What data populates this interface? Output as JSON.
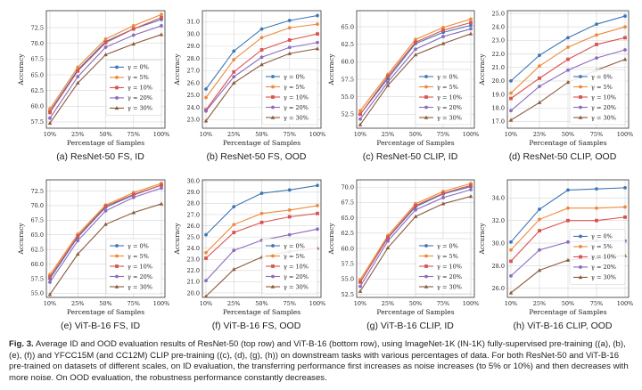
{
  "colors": {
    "series": [
      "#3f77b6",
      "#ee8a3c",
      "#d9534f",
      "#8c6bbf",
      "#8b5a3c"
    ],
    "grid": "#d6d6d6",
    "spine": "#333333"
  },
  "figure_caption": {
    "prefix": "Fig. 3.",
    "text": "Average ID and OOD evaluation results of ResNet-50 (top row) and ViT-B-16 (bottom row), using ImageNet-1K (IN-1K) fully-supervised pre-training ((a), (b), (e), (f)) and YFCC15M (and CC12M) CLIP pre-training ((c), (d), (g), (h)) on downstream tasks with various percentages of data. For both ResNet-50 and ViT-B-16 pre-trained on datasets of different scales, on ID evaluation, the transferring performance first increases as noise increases (to 5% or 10%) and then decreases with more noise. On OOD evaluation, the robustness performance constantly decreases."
  },
  "chart_data": [
    {
      "id": "a",
      "type": "line",
      "caption": "(a) ResNet-50 FS, ID",
      "xlabel": "Percentage of Samples",
      "ylabel": "Accuracy",
      "categories": [
        "10%",
        "25%",
        "50%",
        "75%",
        "100%"
      ],
      "ylim": [
        56.5,
        75.2
      ],
      "yticks": [
        57.5,
        60.0,
        62.5,
        65.0,
        67.5,
        70.0,
        72.5
      ],
      "yticklabels": [
        "57.5",
        "60.0",
        "62.5",
        "65.0",
        "67.5",
        "70.0",
        "72.5"
      ],
      "legend_position": "center-right",
      "series": [
        {
          "name": "γ = 0%",
          "values": [
            59.2,
            65.8,
            70.3,
            72.3,
            73.8
          ]
        },
        {
          "name": "γ = 5%",
          "values": [
            59.6,
            66.2,
            70.7,
            72.8,
            74.6
          ]
        },
        {
          "name": "γ = 10%",
          "values": [
            59.0,
            65.6,
            70.1,
            72.3,
            74.1
          ]
        },
        {
          "name": "γ = 20%",
          "values": [
            58.1,
            64.7,
            69.4,
            71.3,
            72.8
          ]
        },
        {
          "name": "γ = 30%",
          "values": [
            57.3,
            63.7,
            68.2,
            69.9,
            71.4
          ]
        }
      ]
    },
    {
      "id": "b",
      "type": "line",
      "caption": "(b) ResNet-50 FS, OOD",
      "xlabel": "Percentage of Samples",
      "ylabel": "Accuracy",
      "categories": [
        "10%",
        "25%",
        "50%",
        "75%",
        "100%"
      ],
      "ylim": [
        22.3,
        31.9
      ],
      "yticks": [
        23.0,
        24.0,
        25.0,
        26.0,
        27.0,
        28.0,
        29.0,
        30.0,
        31.0
      ],
      "yticklabels": [
        "23.0",
        "24.0",
        "25.0",
        "26.0",
        "27.0",
        "28.0",
        "29.0",
        "30.0",
        "31.0"
      ],
      "legend_position": "bottom-right",
      "series": [
        {
          "name": "γ = 0%",
          "values": [
            25.5,
            28.6,
            30.4,
            31.1,
            31.5
          ]
        },
        {
          "name": "γ = 5%",
          "values": [
            24.8,
            27.9,
            29.7,
            30.5,
            30.8
          ]
        },
        {
          "name": "γ = 10%",
          "values": [
            23.8,
            26.9,
            28.7,
            29.5,
            30.0
          ]
        },
        {
          "name": "γ = 20%",
          "values": [
            23.7,
            26.5,
            28.1,
            28.9,
            29.3
          ]
        },
        {
          "name": "γ = 30%",
          "values": [
            22.9,
            26.0,
            27.5,
            28.4,
            28.8
          ]
        }
      ]
    },
    {
      "id": "c",
      "type": "line",
      "caption": "(c) ResNet-50 CLIP, ID",
      "xlabel": "Percentage of Samples",
      "ylabel": "Accuracy",
      "categories": [
        "10%",
        "25%",
        "50%",
        "75%",
        "100%"
      ],
      "ylim": [
        50.5,
        67.3
      ],
      "yticks": [
        52.5,
        55.0,
        57.5,
        60.0,
        62.5,
        65.0
      ],
      "yticklabels": [
        "52.5",
        "55.0",
        "57.5",
        "60.0",
        "62.5",
        "65.0"
      ],
      "legend_position": "bottom-right",
      "series": [
        {
          "name": "γ = 0%",
          "values": [
            52.5,
            57.6,
            62.6,
            64.2,
            65.2
          ]
        },
        {
          "name": "γ = 5%",
          "values": [
            53.0,
            58.2,
            63.2,
            64.9,
            66.1
          ]
        },
        {
          "name": "γ = 10%",
          "values": [
            52.5,
            57.9,
            62.8,
            64.5,
            65.6
          ]
        },
        {
          "name": "γ = 20%",
          "values": [
            51.8,
            57.1,
            61.8,
            63.6,
            64.7
          ]
        },
        {
          "name": "γ = 30%",
          "values": [
            51.0,
            56.6,
            61.0,
            62.6,
            64.0
          ]
        }
      ]
    },
    {
      "id": "d",
      "type": "line",
      "caption": "(d) ResNet-50 CLIP, OOD",
      "xlabel": "Percentage of Samples",
      "ylabel": "Accuracy",
      "categories": [
        "10%",
        "25%",
        "50%",
        "75%",
        "100%"
      ],
      "ylim": [
        16.5,
        25.2
      ],
      "yticks": [
        17.0,
        18.0,
        19.0,
        20.0,
        21.0,
        22.0,
        23.0,
        24.0,
        25.0
      ],
      "yticklabels": [
        "17.0",
        "18.0",
        "19.0",
        "20.0",
        "21.0",
        "22.0",
        "23.0",
        "24.0",
        "25.0"
      ],
      "legend_position": "bottom-right",
      "series": [
        {
          "name": "γ = 0%",
          "values": [
            20.0,
            21.9,
            23.2,
            24.2,
            24.8
          ]
        },
        {
          "name": "γ = 5%",
          "values": [
            19.1,
            21.1,
            22.5,
            23.4,
            24.0
          ]
        },
        {
          "name": "γ = 10%",
          "values": [
            18.7,
            20.2,
            21.6,
            22.7,
            23.2
          ]
        },
        {
          "name": "γ = 20%",
          "values": [
            17.8,
            19.6,
            20.8,
            21.7,
            22.3
          ]
        },
        {
          "name": "γ = 30%",
          "values": [
            17.1,
            18.4,
            19.9,
            20.8,
            21.6
          ]
        }
      ]
    },
    {
      "id": "e",
      "type": "line",
      "caption": "(e) ViT-B-16 FS, ID",
      "xlabel": "Percentage of Samples",
      "ylabel": "Accuracy",
      "categories": [
        "10%",
        "25%",
        "50%",
        "75%",
        "100%"
      ],
      "ylim": [
        54.3,
        74.4
      ],
      "yticks": [
        55.0,
        57.5,
        60.0,
        62.5,
        65.0,
        67.5,
        70.0,
        72.5
      ],
      "yticklabels": [
        "55.0",
        "57.5",
        "60.0",
        "62.5",
        "65.0",
        "67.5",
        "70.0",
        "72.5"
      ],
      "legend_position": "bottom-right",
      "series": [
        {
          "name": "γ = 0%",
          "values": [
            57.5,
            64.6,
            69.7,
            71.8,
            73.5
          ]
        },
        {
          "name": "γ = 5%",
          "values": [
            58.2,
            65.1,
            70.1,
            72.2,
            73.8
          ]
        },
        {
          "name": "γ = 10%",
          "values": [
            57.8,
            64.8,
            69.9,
            71.9,
            73.5
          ]
        },
        {
          "name": "γ = 20%",
          "values": [
            56.9,
            64.0,
            69.1,
            71.4,
            73.0
          ]
        },
        {
          "name": "γ = 30%",
          "values": [
            54.8,
            61.7,
            66.8,
            68.8,
            70.3
          ]
        }
      ]
    },
    {
      "id": "f",
      "type": "line",
      "caption": "(f) ViT-B-16 FS, OOD",
      "xlabel": "Percentage of Samples",
      "ylabel": "Accuracy",
      "categories": [
        "10%",
        "25%",
        "50%",
        "75%",
        "100%"
      ],
      "ylim": [
        19.6,
        30.1
      ],
      "yticks": [
        20.0,
        21.0,
        22.0,
        23.0,
        24.0,
        25.0,
        26.0,
        27.0,
        28.0,
        29.0,
        30.0
      ],
      "yticklabels": [
        "20.0",
        "21.0",
        "22.0",
        "23.0",
        "24.0",
        "25.0",
        "26.0",
        "27.0",
        "28.0",
        "29.0",
        "30.0"
      ],
      "legend_position": "bottom-right",
      "series": [
        {
          "name": "γ = 0%",
          "values": [
            25.2,
            27.7,
            28.9,
            29.2,
            29.6
          ]
        },
        {
          "name": "γ = 5%",
          "values": [
            23.6,
            26.1,
            27.1,
            27.4,
            27.8
          ]
        },
        {
          "name": "γ = 10%",
          "values": [
            23.1,
            25.4,
            26.3,
            26.8,
            27.1
          ]
        },
        {
          "name": "γ = 20%",
          "values": [
            21.1,
            23.8,
            24.7,
            25.2,
            25.7
          ]
        },
        {
          "name": "γ = 30%",
          "values": [
            19.7,
            22.1,
            23.2,
            23.7,
            24.0
          ]
        }
      ]
    },
    {
      "id": "g",
      "type": "line",
      "caption": "(g) ViT-B-16 CLIP, ID",
      "xlabel": "Percentage of Samples",
      "ylabel": "Accuracy",
      "categories": [
        "10%",
        "25%",
        "50%",
        "75%",
        "100%"
      ],
      "ylim": [
        52.0,
        71.2
      ],
      "yticks": [
        52.5,
        55.0,
        57.5,
        60.0,
        62.5,
        65.0,
        67.5,
        70.0
      ],
      "yticklabels": [
        "52.5",
        "55.0",
        "57.5",
        "60.0",
        "62.5",
        "65.0",
        "67.5",
        "70.0"
      ],
      "legend_position": "bottom-right",
      "series": [
        {
          "name": "γ = 0%",
          "values": [
            54.5,
            61.7,
            66.8,
            68.9,
            70.1
          ]
        },
        {
          "name": "γ = 5%",
          "values": [
            54.9,
            62.1,
            67.3,
            69.3,
            70.6
          ]
        },
        {
          "name": "γ = 10%",
          "values": [
            54.5,
            61.8,
            67.0,
            69.0,
            70.3
          ]
        },
        {
          "name": "γ = 20%",
          "values": [
            53.8,
            61.2,
            66.3,
            68.3,
            69.6
          ]
        },
        {
          "name": "γ = 30%",
          "values": [
            53.0,
            60.1,
            65.2,
            67.3,
            68.5
          ]
        }
      ]
    },
    {
      "id": "h",
      "type": "line",
      "caption": "(h) ViT-B-16 CLIP, OOD",
      "xlabel": "Percentage of Samples",
      "ylabel": "Accuracy",
      "categories": [
        "10%",
        "25%",
        "50%",
        "75%",
        "100%"
      ],
      "ylim": [
        25.2,
        35.6
      ],
      "yticks": [
        26.0,
        28.0,
        30.0,
        32.0,
        34.0
      ],
      "yticklabels": [
        "26.0",
        "28.0",
        "30.0",
        "32.0",
        "34.0"
      ],
      "legend_position": "center-right",
      "series": [
        {
          "name": "γ = 0%",
          "values": [
            30.1,
            33.0,
            34.7,
            34.8,
            34.9
          ]
        },
        {
          "name": "γ = 5%",
          "values": [
            29.4,
            32.1,
            33.1,
            33.1,
            33.2
          ]
        },
        {
          "name": "γ = 10%",
          "values": [
            28.4,
            31.1,
            32.0,
            32.0,
            32.3
          ]
        },
        {
          "name": "γ = 20%",
          "values": [
            27.1,
            29.4,
            30.1,
            30.2,
            30.2
          ]
        },
        {
          "name": "γ = 30%",
          "values": [
            25.6,
            27.6,
            28.5,
            28.7,
            28.9
          ]
        }
      ]
    }
  ]
}
